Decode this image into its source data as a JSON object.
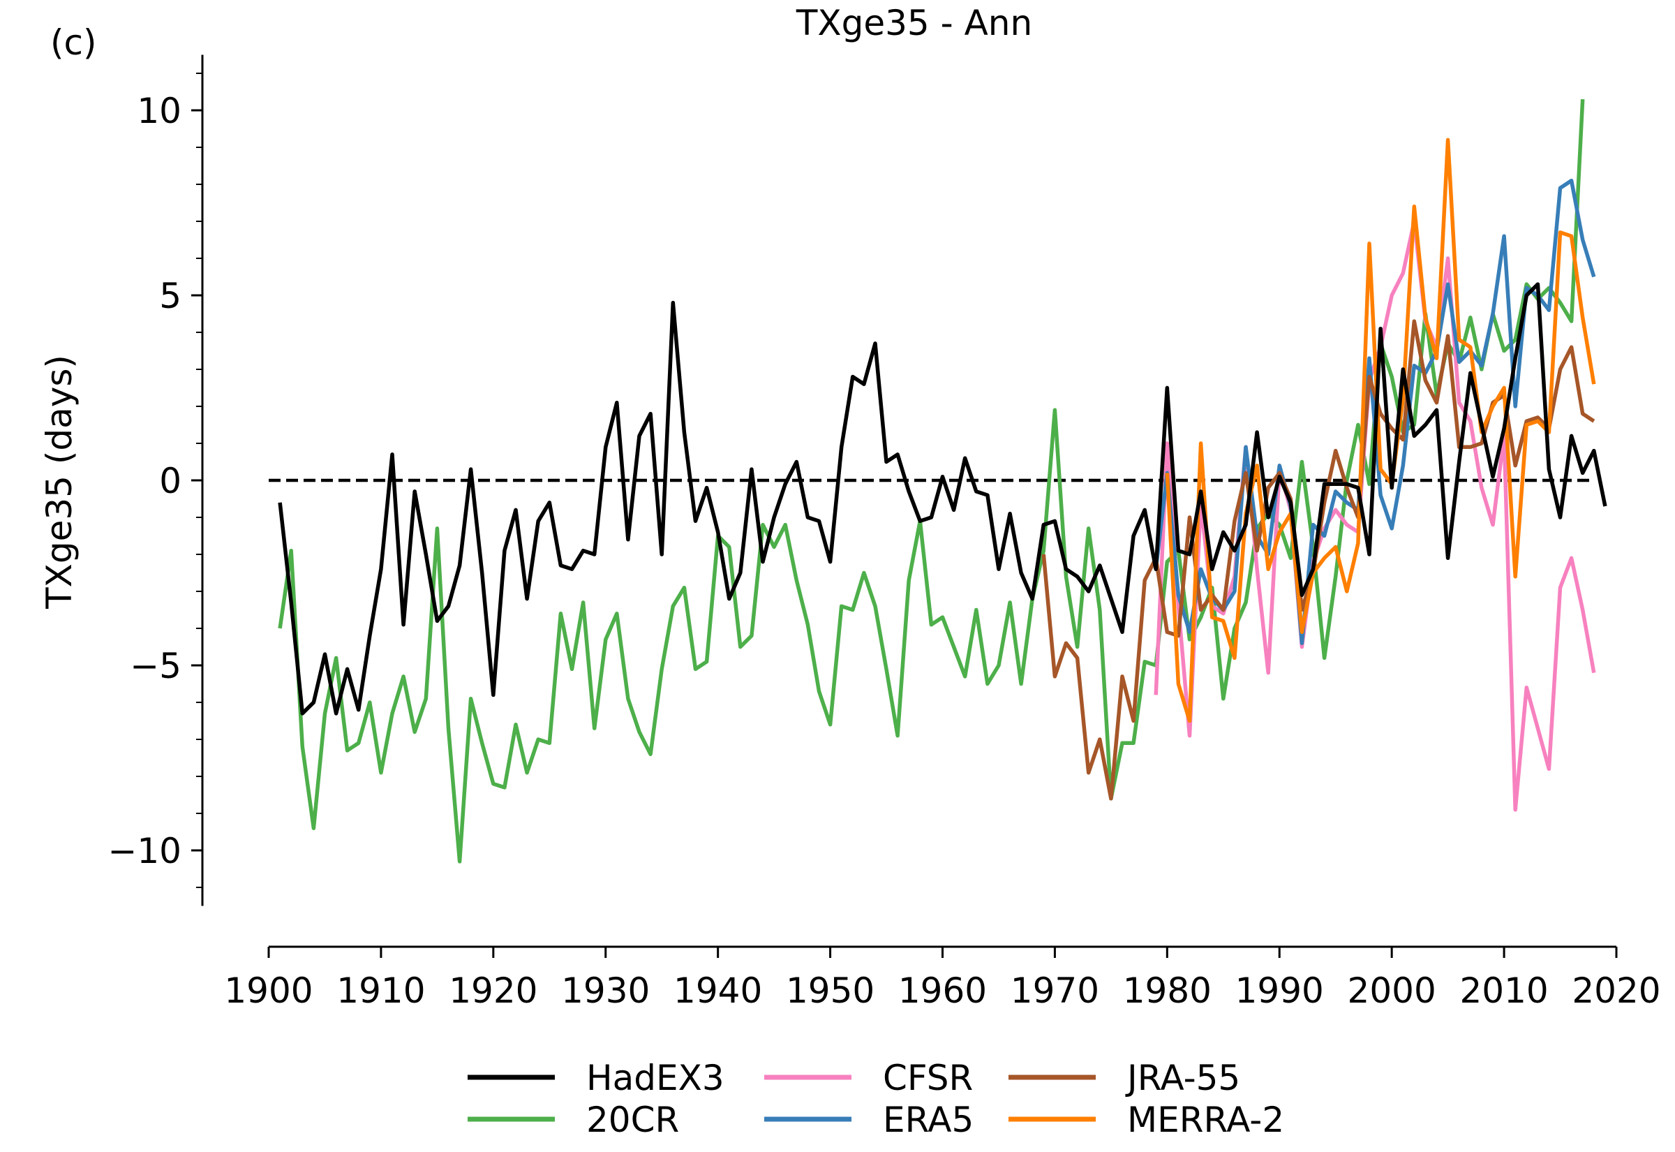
{
  "chart_data": {
    "type": "line",
    "panel_label": "(c)",
    "title": "TXge35 - Ann",
    "xlabel": "",
    "ylabel": "TXge35 (days)",
    "xlim": [
      1900,
      2020
    ],
    "ylim": [
      -11.5,
      11.5
    ],
    "xticks": [
      1900,
      1910,
      1920,
      1930,
      1940,
      1950,
      1960,
      1970,
      1980,
      1990,
      2000,
      2010,
      2020
    ],
    "yticks": [
      -10,
      -5,
      0,
      5,
      10
    ],
    "ytick_labels": [
      "−10",
      "−5",
      "0",
      "5",
      "10"
    ],
    "zero_line": {
      "y": 0,
      "style": "dashed",
      "color": "#000000"
    },
    "grid": false,
    "legend": {
      "placement": "bottom-center",
      "columns": 3
    },
    "series": [
      {
        "name": "HadEX3",
        "color": "#000000",
        "start": 1901,
        "values": [
          -0.6,
          -3.3,
          -6.3,
          -6.0,
          -4.7,
          -6.3,
          -5.1,
          -6.2,
          -4.2,
          -2.4,
          0.7,
          -3.9,
          -0.3,
          -2.0,
          -3.8,
          -3.4,
          -2.3,
          0.3,
          -2.5,
          -5.8,
          -1.9,
          -0.8,
          -3.2,
          -1.1,
          -0.6,
          -2.3,
          -2.4,
          -1.9,
          -2.0,
          0.9,
          2.1,
          -1.6,
          1.2,
          1.8,
          -2.0,
          4.8,
          1.3,
          -1.1,
          -0.2,
          -1.4,
          -3.2,
          -2.5,
          0.3,
          -2.2,
          -1.0,
          -0.1,
          0.5,
          -1.0,
          -1.1,
          -2.2,
          0.9,
          2.8,
          2.6,
          3.7,
          0.5,
          0.7,
          -0.3,
          -1.1,
          -1.0,
          0.1,
          -0.8,
          0.6,
          -0.3,
          -0.4,
          -2.4,
          -0.9,
          -2.5,
          -3.2,
          -1.2,
          -1.1,
          -2.4,
          -2.6,
          -3.0,
          -2.3,
          -3.2,
          -4.1,
          -1.5,
          -0.8,
          -2.4,
          2.5,
          -1.9,
          -2.0,
          -0.3,
          -2.4,
          -1.4,
          -1.9,
          -1.2,
          1.3,
          -1.0,
          0.1,
          -0.6,
          -3.1,
          -2.4,
          -0.1,
          -0.1,
          -0.1,
          -0.2,
          -2.0,
          4.1,
          -0.2,
          3.0,
          1.2,
          1.5,
          1.9,
          -2.1,
          0.5,
          2.9,
          1.5,
          0.1,
          1.4,
          3.3,
          5.0,
          5.3,
          0.3,
          -1.0,
          1.2,
          0.2,
          0.8,
          -0.7
        ]
      },
      {
        "name": "20CR",
        "color": "#4daf4a",
        "start": 1901,
        "values": [
          -4.0,
          -1.9,
          -7.2,
          -9.4,
          -6.3,
          -4.8,
          -7.3,
          -7.1,
          -6.0,
          -7.9,
          -6.3,
          -5.3,
          -6.8,
          -5.9,
          -1.3,
          -6.7,
          -10.3,
          -5.9,
          -7.1,
          -8.2,
          -8.3,
          -6.6,
          -7.9,
          -7.0,
          -7.1,
          -3.6,
          -5.1,
          -3.3,
          -6.7,
          -4.3,
          -3.6,
          -5.9,
          -6.8,
          -7.4,
          -5.1,
          -3.4,
          -2.9,
          -5.1,
          -4.9,
          -1.5,
          -1.8,
          -4.5,
          -4.2,
          -1.2,
          -1.8,
          -1.2,
          -2.7,
          -3.9,
          -5.7,
          -6.6,
          -3.4,
          -3.5,
          -2.5,
          -3.4,
          -5.1,
          -6.9,
          -2.7,
          -1.1,
          -3.9,
          -3.7,
          -4.5,
          -5.3,
          -3.5,
          -5.5,
          -5.0,
          -3.3,
          -5.5,
          -3.2,
          -1.9,
          1.9,
          -2.6,
          -4.5,
          -1.3,
          -3.5,
          -8.6,
          -7.1,
          -7.1,
          -4.9,
          -5.0,
          -2.2,
          -1.9,
          -4.3,
          -3.7,
          -2.9,
          -5.9,
          -4.0,
          -3.3,
          -1.3,
          -0.9,
          -1.2,
          -2.1,
          0.5,
          -1.8,
          -4.8,
          -2.6,
          0.0,
          1.5,
          -0.1,
          3.7,
          2.8,
          1.3,
          1.5,
          4.5,
          2.3,
          3.7,
          3.2,
          4.4,
          3.0,
          4.5,
          3.5,
          3.8,
          5.3,
          4.9,
          5.2,
          4.8,
          4.3,
          10.3
        ]
      },
      {
        "name": "CFSR",
        "color": "#f781bf",
        "start": 1979,
        "values": [
          -5.8,
          1.0,
          -3.4,
          -6.9,
          -0.6,
          -3.4,
          -3.6,
          -2.6,
          0.9,
          -2.4,
          -5.2,
          0.3,
          -0.8,
          -4.5,
          -2.2,
          -1.3,
          -0.8,
          -1.2,
          -1.4,
          2.7,
          3.6,
          5.0,
          5.6,
          7.0,
          4.3,
          3.6,
          6.0,
          2.1,
          1.6,
          -0.2,
          -1.2,
          1.2,
          -8.9,
          -5.6,
          -6.7,
          -7.8,
          -2.9,
          -2.1,
          -3.5,
          -5.2
        ]
      },
      {
        "name": "ERA5",
        "color": "#377eb8",
        "start": 1979,
        "values": [
          -2.4,
          0.2,
          -3.1,
          -4.1,
          -2.4,
          -3.2,
          -3.5,
          -3.0,
          0.9,
          -1.5,
          -2.0,
          0.4,
          -0.7,
          -4.4,
          -1.2,
          -1.5,
          -0.3,
          -0.6,
          -0.8,
          3.3,
          -0.4,
          -1.3,
          0.4,
          3.1,
          2.9,
          3.5,
          5.3,
          3.2,
          3.5,
          3.1,
          4.5,
          6.6,
          2.0,
          5.2,
          5.0,
          4.6,
          7.9,
          8.1,
          6.5,
          5.5
        ]
      },
      {
        "name": "JRA-55",
        "color": "#a65628",
        "start": 1969,
        "values": [
          -2.0,
          -5.3,
          -4.4,
          -4.8,
          -7.9,
          -7.0,
          -8.6,
          -5.3,
          -6.5,
          -2.7,
          -2.1,
          -4.1,
          -4.2,
          -1.0,
          -3.5,
          -3.1,
          -3.5,
          -1.1,
          0.2,
          -1.9,
          -0.2,
          0.2,
          -0.5,
          -3.5,
          -2.5,
          -0.6,
          0.8,
          -0.2,
          -1.0,
          2.8,
          1.8,
          1.4,
          1.1,
          4.3,
          2.7,
          2.1,
          3.9,
          0.9,
          0.9,
          1.0,
          2.1,
          2.3,
          0.4,
          1.6,
          1.7,
          1.4,
          3.0,
          3.6,
          1.8,
          1.6
        ]
      },
      {
        "name": "MERRA-2",
        "color": "#ff7f00",
        "start": 1980,
        "values": [
          0.2,
          -5.5,
          -6.5,
          1.0,
          -3.7,
          -3.8,
          -4.8,
          -0.9,
          0.4,
          -2.4,
          -1.4,
          -0.9,
          -4.1,
          -2.5,
          -2.1,
          -1.8,
          -3.0,
          -1.7,
          6.4,
          0.3,
          -0.1,
          2.2,
          7.4,
          4.4,
          3.3,
          9.2,
          3.8,
          3.6,
          1.3,
          2.0,
          2.5,
          -2.6,
          1.5,
          1.6,
          1.3,
          6.7,
          6.6,
          4.4,
          2.6
        ]
      }
    ]
  }
}
